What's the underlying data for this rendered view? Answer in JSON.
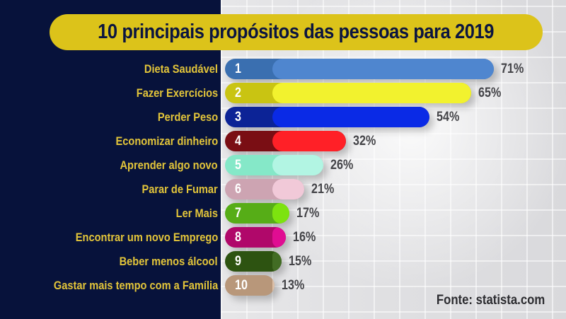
{
  "title": "10 principais propósitos das pessoas para 2019",
  "source": "Fonte: statista.com",
  "colors": {
    "left_panel": "#07123b",
    "title_pill": "#dcc31a",
    "title_text": "#0b1540",
    "label_text": "#e3c53a",
    "pct_text": "#444448"
  },
  "items": [
    {
      "rank": "1",
      "label": "Dieta Saudável",
      "value": 71,
      "pct": "71%",
      "dark": "#3a6fb0",
      "light": "#4f86cf"
    },
    {
      "rank": "2",
      "label": "Fazer Exercícios",
      "value": 65,
      "pct": "65%",
      "dark": "#c9c412",
      "light": "#f2f22e"
    },
    {
      "rank": "3",
      "label": "Perder Peso",
      "value": 54,
      "pct": "54%",
      "dark": "#0c2396",
      "light": "#0a2ae6"
    },
    {
      "rank": "4",
      "label": "Economizar dinheiro",
      "value": 32,
      "pct": "32%",
      "dark": "#7a0e14",
      "light": "#ff2027"
    },
    {
      "rank": "5",
      "label": "Aprender algo novo",
      "value": 26,
      "pct": "26%",
      "dark": "#85e8c8",
      "light": "#b2f5e3"
    },
    {
      "rank": "6",
      "label": "Parar de Fumar",
      "value": 21,
      "pct": "21%",
      "dark": "#cda4b2",
      "light": "#f1c9d8"
    },
    {
      "rank": "7",
      "label": "Ler Mais",
      "value": 17,
      "pct": "17%",
      "dark": "#56ad17",
      "light": "#7de30f"
    },
    {
      "rank": "8",
      "label": "Encontrar um novo Emprego",
      "value": 16,
      "pct": "16%",
      "dark": "#b0086a",
      "light": "#e00d92"
    },
    {
      "rank": "9",
      "label": "Beber menos álcool",
      "value": 15,
      "pct": "15%",
      "dark": "#2d5311",
      "light": "#426c24"
    },
    {
      "rank": "10",
      "label": "Gastar mais tempo com a Família",
      "value": 13,
      "pct": "13%",
      "dark": "#b8977a",
      "light": "#dcc0a8"
    }
  ],
  "chart_data": {
    "type": "bar",
    "orientation": "horizontal",
    "title": "10 principais propósitos das pessoas para 2019",
    "categories": [
      "Dieta Saudável",
      "Fazer Exercícios",
      "Perder Peso",
      "Economizar dinheiro",
      "Aprender algo novo",
      "Parar de Fumar",
      "Ler Mais",
      "Encontrar um novo Emprego",
      "Beber menos álcool",
      "Gastar mais tempo com a Família"
    ],
    "values": [
      71,
      65,
      54,
      32,
      26,
      21,
      17,
      16,
      15,
      13
    ],
    "value_labels": [
      "71%",
      "65%",
      "54%",
      "32%",
      "26%",
      "21%",
      "17%",
      "16%",
      "15%",
      "13%"
    ],
    "ranks": [
      "1",
      "2",
      "3",
      "4",
      "5",
      "6",
      "7",
      "8",
      "9",
      "10"
    ],
    "xlabel": "",
    "ylabel": "",
    "unit": "%",
    "grid": true,
    "legend": "none",
    "annotations": [
      "Fonte: statista.com"
    ]
  }
}
